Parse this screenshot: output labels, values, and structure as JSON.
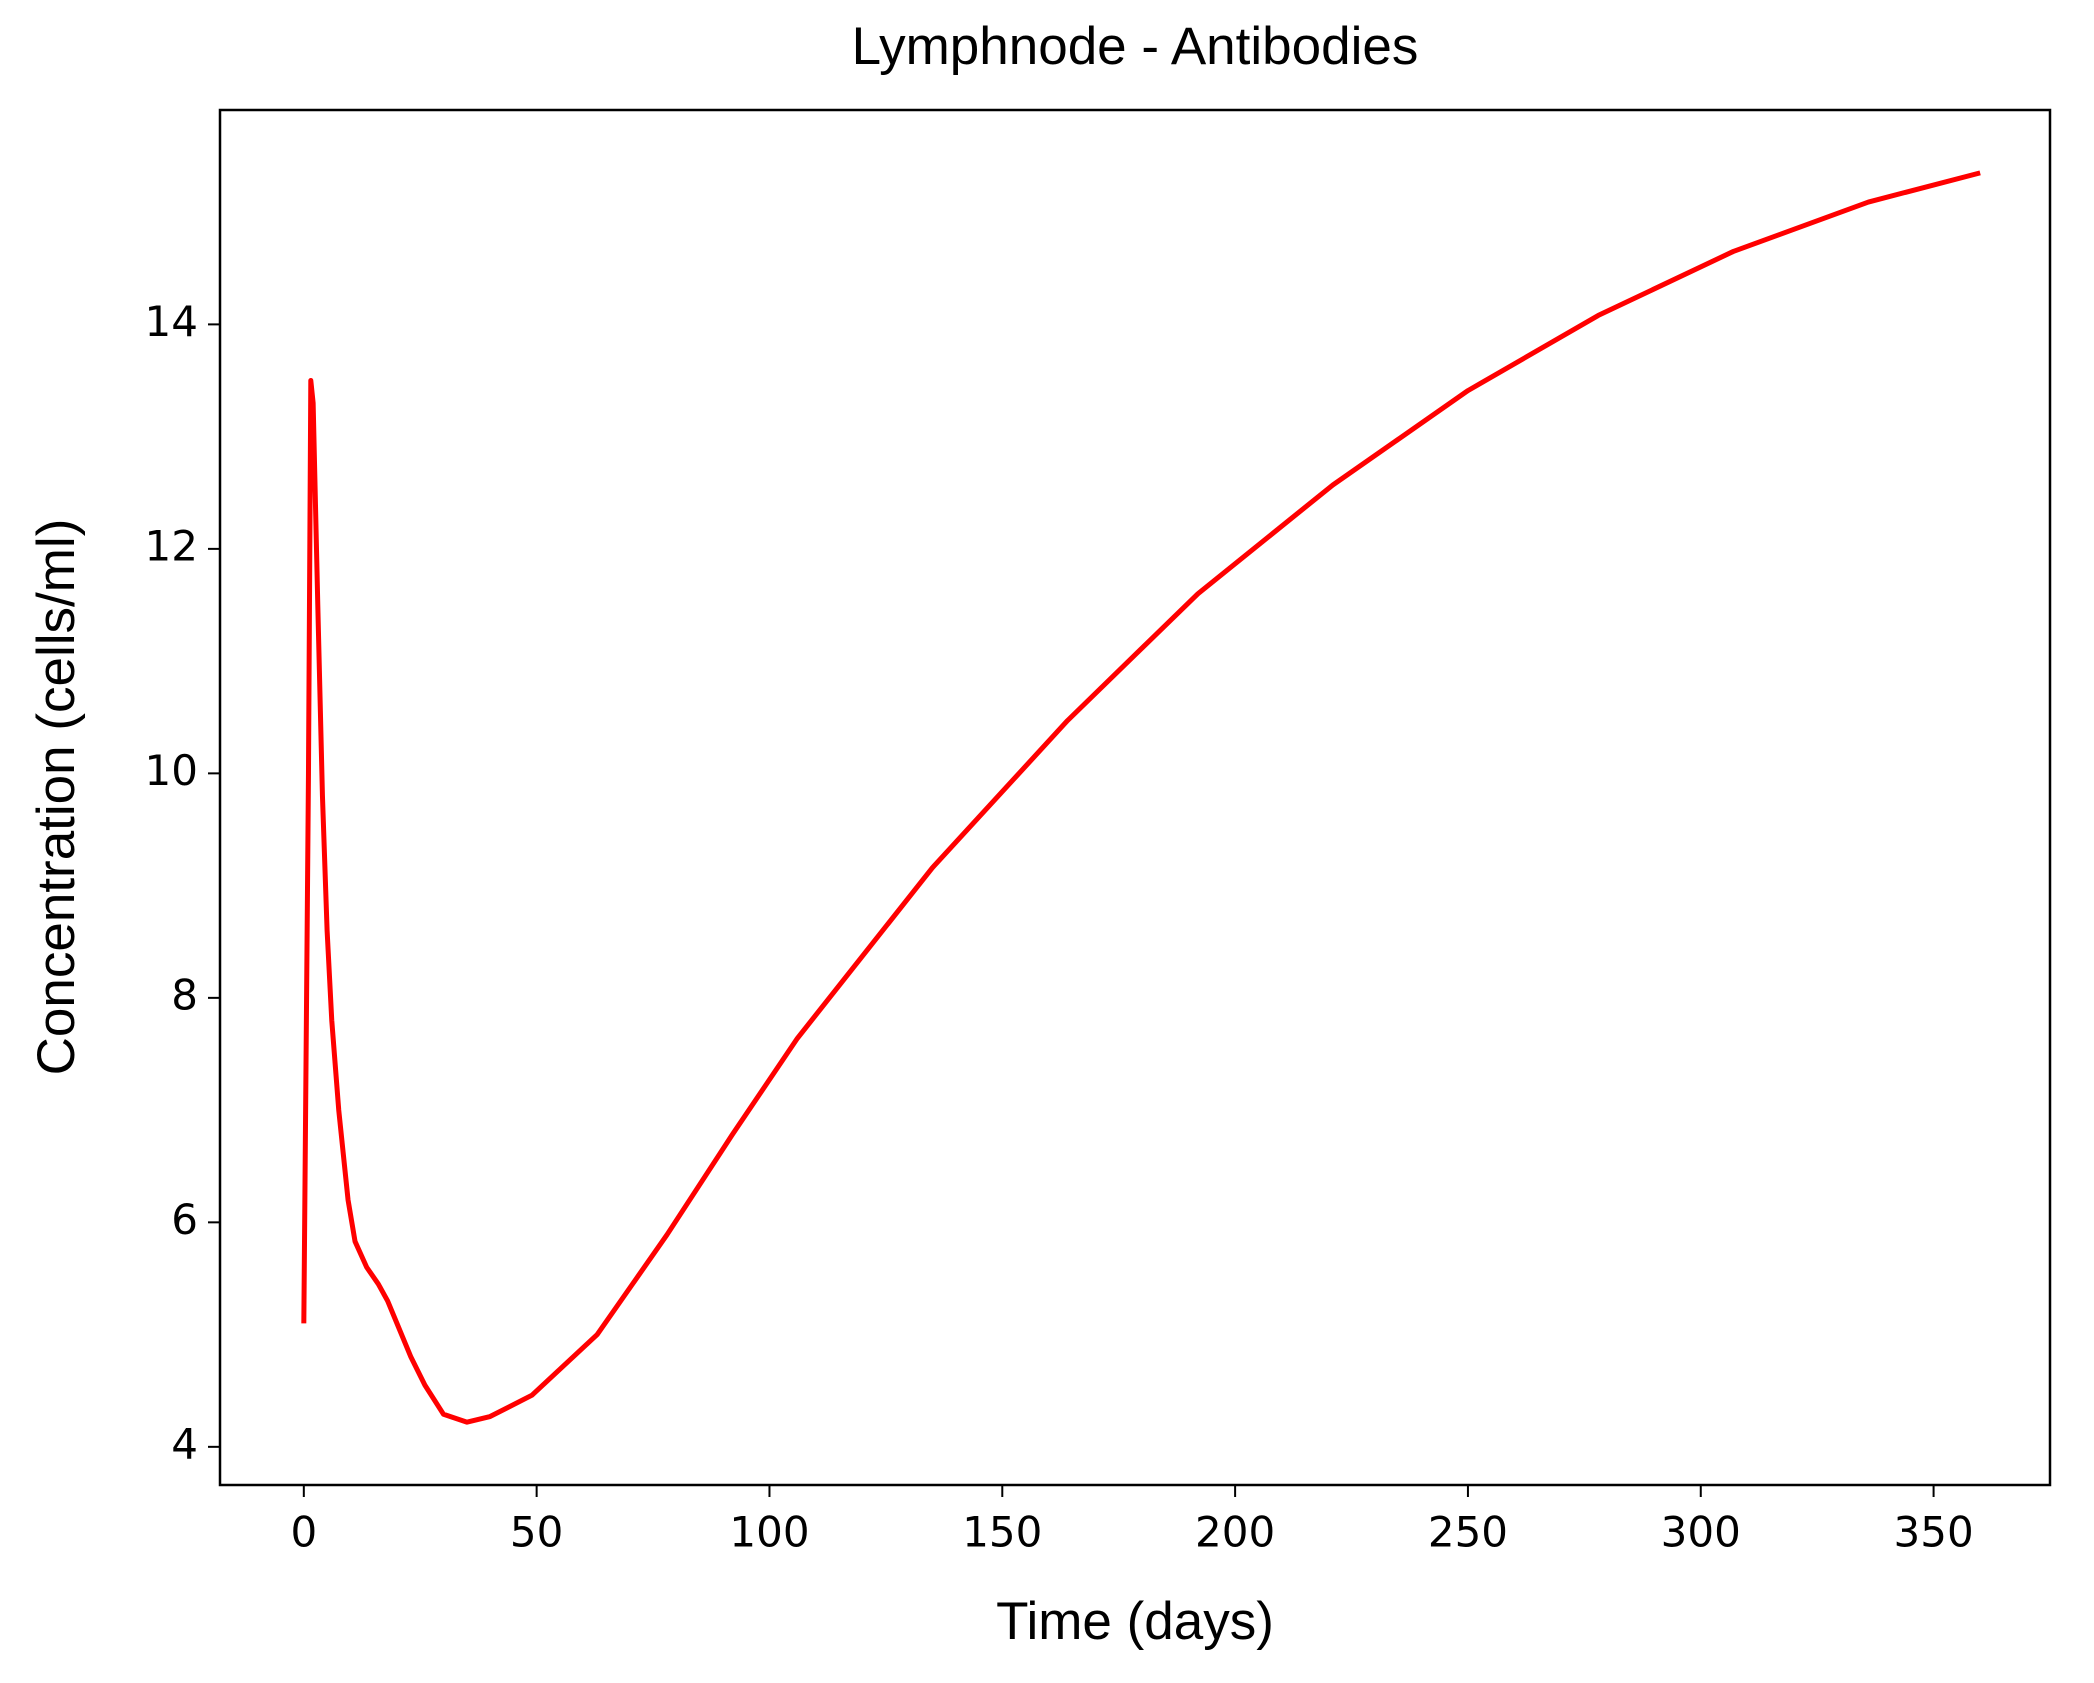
{
  "chart_data": {
    "type": "line",
    "title": "Lymphnode - Antibodies",
    "x_label": "Time (days)",
    "y_label": "Concentration (cells/ml)",
    "x": [
      0,
      1,
      1.5,
      2,
      3,
      4,
      5,
      6,
      7.5,
      9.5,
      11,
      13.5,
      16,
      18,
      20,
      23,
      26,
      30,
      35,
      40,
      49,
      63,
      78,
      92,
      106,
      135,
      164,
      192,
      221,
      250,
      278,
      307,
      336,
      360
    ],
    "series": [
      {
        "name": "Antibodies",
        "color": "#ff0000",
        "values": [
          5.1,
          10,
          13.5,
          13.3,
          11.5,
          9.8,
          8.6,
          7.8,
          7.0,
          6.2,
          5.83,
          5.6,
          5.45,
          5.3,
          5.1,
          4.8,
          4.55,
          4.29,
          4.22,
          4.27,
          4.46,
          5.0,
          5.89,
          6.78,
          7.64,
          9.16,
          10.47,
          11.6,
          12.57,
          13.41,
          14.08,
          14.65,
          15.09,
          15.35
        ]
      }
    ],
    "xlim": [
      -18,
      375
    ],
    "ylim": [
      3.66,
      15.91
    ],
    "xticks": [
      0,
      50,
      100,
      150,
      200,
      250,
      300,
      350
    ],
    "yticks": [
      4,
      6,
      8,
      10,
      12,
      14
    ]
  }
}
